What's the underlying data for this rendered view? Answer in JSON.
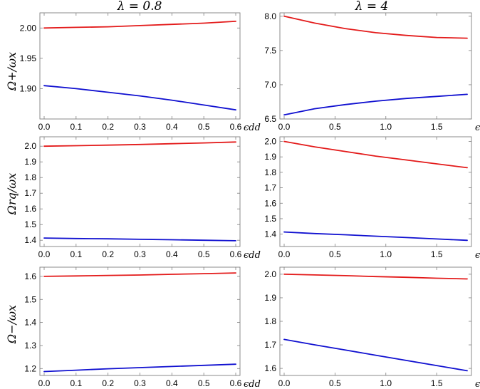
{
  "columns": [
    {
      "title": "λ = 0.8"
    },
    {
      "title": "λ = 4"
    }
  ],
  "rows": [
    {
      "ylabel": "Ω+/ωx"
    },
    {
      "ylabel": "Ωrq/ωx"
    },
    {
      "ylabel": "Ω−/ωx"
    }
  ],
  "xlabel": "ϵdd",
  "colors": {
    "upper": "#e31a1a",
    "lower": "#1010d0"
  },
  "chart_data": [
    {
      "type": "line",
      "panel": "top-left",
      "xlabel": "ϵdd",
      "ylabel": "Ω+/ωx",
      "xlim": [
        0,
        0.6
      ],
      "ylim": [
        1.85,
        2.025
      ],
      "xticks": [
        0.0,
        0.1,
        0.2,
        0.3,
        0.4,
        0.5,
        0.6
      ],
      "yticks": [
        1.9,
        1.95,
        2.0
      ],
      "xtick_labels": [
        "0.0",
        "0.1",
        "0.2",
        "0.3",
        "0.4",
        "0.5",
        "0.6"
      ],
      "ytick_labels": [
        "1.90",
        "1.95",
        "2.00"
      ],
      "series": [
        {
          "color": "#e31a1a",
          "x": [
            0,
            0.1,
            0.2,
            0.3,
            0.4,
            0.5,
            0.6
          ],
          "values": [
            2.0,
            2.001,
            2.002,
            2.004,
            2.006,
            2.008,
            2.011
          ]
        },
        {
          "color": "#1010d0",
          "x": [
            0,
            0.1,
            0.2,
            0.3,
            0.4,
            0.5,
            0.6
          ],
          "values": [
            1.905,
            1.9,
            1.894,
            1.888,
            1.881,
            1.873,
            1.865
          ]
        }
      ]
    },
    {
      "type": "line",
      "panel": "top-right",
      "xlabel": "ϵdd",
      "ylabel": "",
      "xlim": [
        0,
        1.8
      ],
      "ylim": [
        6.5,
        8.05
      ],
      "xticks": [
        0.0,
        0.5,
        1.0,
        1.5
      ],
      "yticks": [
        6.5,
        7.0,
        7.5,
        8.0
      ],
      "xtick_labels": [
        "0.0",
        "0.5",
        "1.0",
        "1.5"
      ],
      "ytick_labels": [
        "6.5",
        "7.0",
        "7.5",
        "8.0"
      ],
      "series": [
        {
          "color": "#e31a1a",
          "x": [
            0,
            0.3,
            0.6,
            0.9,
            1.2,
            1.5,
            1.8
          ],
          "values": [
            8.0,
            7.9,
            7.82,
            7.76,
            7.72,
            7.69,
            7.68
          ]
        },
        {
          "color": "#1010d0",
          "x": [
            0,
            0.3,
            0.6,
            0.9,
            1.2,
            1.5,
            1.8
          ],
          "values": [
            6.56,
            6.65,
            6.71,
            6.76,
            6.8,
            6.83,
            6.86
          ]
        }
      ]
    },
    {
      "type": "line",
      "panel": "middle-left",
      "xlabel": "ϵdd",
      "ylabel": "Ωrq/ωx",
      "xlim": [
        0,
        0.6
      ],
      "ylim": [
        1.36,
        2.06
      ],
      "xticks": [
        0.0,
        0.1,
        0.2,
        0.3,
        0.4,
        0.5,
        0.6
      ],
      "yticks": [
        1.4,
        1.5,
        1.6,
        1.7,
        1.8,
        1.9,
        2.0
      ],
      "xtick_labels": [
        "0.0",
        "0.1",
        "0.2",
        "0.3",
        "0.4",
        "0.5",
        "0.6"
      ],
      "ytick_labels": [
        "1.4",
        "1.5",
        "1.6",
        "1.7",
        "1.8",
        "1.9",
        "2.0"
      ],
      "series": [
        {
          "color": "#e31a1a",
          "x": [
            0,
            0.1,
            0.2,
            0.3,
            0.4,
            0.5,
            0.6
          ],
          "values": [
            2.0,
            2.003,
            2.007,
            2.011,
            2.016,
            2.021,
            2.027
          ]
        },
        {
          "color": "#1010d0",
          "x": [
            0,
            0.1,
            0.2,
            0.3,
            0.4,
            0.5,
            0.6
          ],
          "values": [
            1.414,
            1.411,
            1.409,
            1.406,
            1.403,
            1.4,
            1.397
          ]
        }
      ]
    },
    {
      "type": "line",
      "panel": "middle-right",
      "xlabel": "ϵdd",
      "ylabel": "",
      "xlim": [
        0,
        1.8
      ],
      "ylim": [
        1.32,
        2.03
      ],
      "xticks": [
        0.0,
        0.5,
        1.0,
        1.5
      ],
      "yticks": [
        1.4,
        1.5,
        1.6,
        1.7,
        1.8,
        1.9,
        2.0
      ],
      "xtick_labels": [
        "0.0",
        "0.5",
        "1.0",
        "1.5"
      ],
      "ytick_labels": [
        "1.4",
        "1.5",
        "1.6",
        "1.7",
        "1.8",
        "1.9",
        "2.0"
      ],
      "series": [
        {
          "color": "#e31a1a",
          "x": [
            0,
            0.3,
            0.6,
            0.9,
            1.2,
            1.5,
            1.8
          ],
          "values": [
            2.0,
            1.965,
            1.935,
            1.905,
            1.88,
            1.855,
            1.83
          ]
        },
        {
          "color": "#1010d0",
          "x": [
            0,
            0.3,
            0.6,
            0.9,
            1.2,
            1.5,
            1.8
          ],
          "values": [
            1.414,
            1.404,
            1.396,
            1.387,
            1.378,
            1.369,
            1.36
          ]
        }
      ]
    },
    {
      "type": "line",
      "panel": "bottom-left",
      "xlabel": "ϵdd",
      "ylabel": "Ω−/ωx",
      "xlim": [
        0,
        0.6
      ],
      "ylim": [
        1.17,
        1.64
      ],
      "xticks": [
        0.0,
        0.1,
        0.2,
        0.3,
        0.4,
        0.5,
        0.6
      ],
      "yticks": [
        1.2,
        1.3,
        1.4,
        1.5,
        1.6
      ],
      "xtick_labels": [
        "0.0",
        "0.1",
        "0.2",
        "0.3",
        "0.4",
        "0.5",
        "0.6"
      ],
      "ytick_labels": [
        "1.2",
        "1.3",
        "1.4",
        "1.5",
        "1.6"
      ],
      "series": [
        {
          "color": "#e31a1a",
          "x": [
            0,
            0.1,
            0.2,
            0.3,
            0.4,
            0.5,
            0.6
          ],
          "values": [
            1.6,
            1.602,
            1.604,
            1.606,
            1.609,
            1.612,
            1.615
          ]
        },
        {
          "color": "#1010d0",
          "x": [
            0,
            0.1,
            0.2,
            0.3,
            0.4,
            0.5,
            0.6
          ],
          "values": [
            1.187,
            1.193,
            1.199,
            1.204,
            1.209,
            1.214,
            1.219
          ]
        }
      ]
    },
    {
      "type": "line",
      "panel": "bottom-right",
      "xlabel": "ϵdd",
      "ylabel": "",
      "xlim": [
        0,
        1.8
      ],
      "ylim": [
        1.57,
        2.03
      ],
      "xticks": [
        0.0,
        0.5,
        1.0,
        1.5
      ],
      "yticks": [
        1.6,
        1.7,
        1.8,
        1.9,
        2.0
      ],
      "xtick_labels": [
        "0.0",
        "0.5",
        "1.0",
        "1.5"
      ],
      "ytick_labels": [
        "1.6",
        "1.7",
        "1.8",
        "1.9",
        "2.0"
      ],
      "series": [
        {
          "color": "#e31a1a",
          "x": [
            0,
            0.3,
            0.6,
            0.9,
            1.2,
            1.5,
            1.8
          ],
          "values": [
            2.0,
            1.997,
            1.994,
            1.99,
            1.987,
            1.983,
            1.98
          ]
        },
        {
          "color": "#1010d0",
          "x": [
            0,
            0.3,
            0.6,
            0.9,
            1.2,
            1.5,
            1.8
          ],
          "values": [
            1.723,
            1.7,
            1.678,
            1.656,
            1.634,
            1.612,
            1.59
          ]
        }
      ]
    }
  ]
}
